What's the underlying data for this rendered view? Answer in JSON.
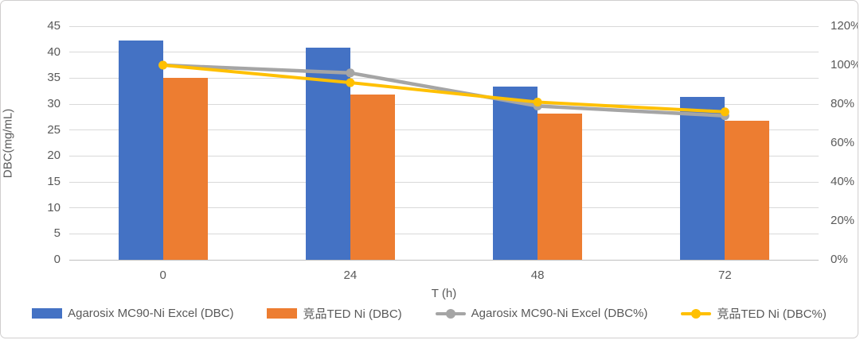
{
  "chart_data": {
    "type": "combo-bar-line",
    "categories": [
      "0",
      "24",
      "48",
      "72"
    ],
    "xlabel": "T (h)",
    "left_axis": {
      "label": "DBC(mg/mL)",
      "min": 0,
      "max": 45,
      "step": 5,
      "ticks": [
        "0",
        "5",
        "10",
        "15",
        "20",
        "25",
        "30",
        "35",
        "40",
        "45"
      ]
    },
    "right_axis": {
      "min": 0,
      "max": 120,
      "step": 20,
      "unit": "%",
      "ticks": [
        "0%",
        "20%",
        "40%",
        "60%",
        "80%",
        "100%",
        "120%"
      ]
    },
    "bar_series": [
      {
        "name": "Agarosix MC90-Ni Excel (DBC)",
        "color": "#4472C4",
        "axis": "left",
        "values": [
          42.3,
          40.9,
          33.4,
          31.4
        ]
      },
      {
        "name": "竞品TED Ni (DBC)",
        "color": "#ED7D31",
        "axis": "left",
        "values": [
          35.0,
          31.9,
          28.1,
          26.8
        ]
      }
    ],
    "line_series": [
      {
        "name": "Agarosix MC90-Ni Excel (DBC%)",
        "color": "#A5A5A5",
        "axis": "right",
        "values": [
          100,
          96,
          79,
          74
        ]
      },
      {
        "name": "竞品TED Ni (DBC%)",
        "color": "#FFC000",
        "axis": "right",
        "values": [
          100,
          91,
          81,
          76
        ]
      }
    ],
    "grid": true,
    "legend_position": "bottom"
  },
  "style": {
    "text_color": "#595959",
    "grid_color": "#D9D9D9",
    "axis_line_color": "#BFBFBF",
    "background": "#FFFFFF",
    "border_color": "#D0CECE"
  }
}
